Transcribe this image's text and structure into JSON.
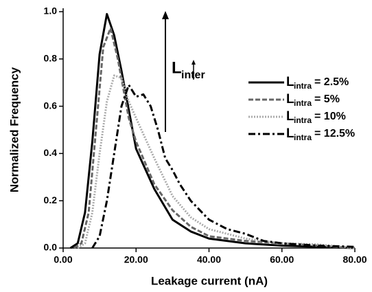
{
  "chart_data": {
    "type": "line",
    "xlabel": "Leakage current (nA)",
    "ylabel": "Normalized Frequency",
    "annotation": [
      "L",
      "inter"
    ],
    "xlim": [
      0,
      80
    ],
    "ylim": [
      0,
      1.0
    ],
    "xticks": [
      {
        "value": 0,
        "label": "0.00"
      },
      {
        "value": 20,
        "label": "20.00"
      },
      {
        "value": 40,
        "label": "40.00"
      },
      {
        "value": 60,
        "label": "60.00"
      },
      {
        "value": 80,
        "label": "80.00"
      }
    ],
    "yticks": [
      {
        "value": 0,
        "label": "0.0"
      },
      {
        "value": 0.2,
        "label": "0.2"
      },
      {
        "value": 0.4,
        "label": "0.4"
      },
      {
        "value": 0.6,
        "label": "0.6"
      },
      {
        "value": 0.8,
        "label": "0.8"
      },
      {
        "value": 1.0,
        "label": "1.0"
      }
    ],
    "series": [
      {
        "name": [
          "L",
          "intra",
          "= 2.5%"
        ],
        "color": "#000000",
        "dash": "solid",
        "x": [
          2,
          4,
          6,
          8,
          10,
          12,
          14,
          16,
          20,
          25,
          30,
          35,
          40,
          50,
          60,
          70,
          80
        ],
        "values": [
          0,
          0.02,
          0.15,
          0.45,
          0.82,
          0.99,
          0.9,
          0.75,
          0.42,
          0.25,
          0.12,
          0.07,
          0.04,
          0.02,
          0.01,
          0.005,
          0
        ]
      },
      {
        "name": [
          "L",
          "intra",
          "= 5%"
        ],
        "color": "#666666",
        "dash": "dashed",
        "x": [
          3,
          5,
          7,
          9,
          11,
          13,
          15,
          18,
          20,
          25,
          30,
          35,
          40,
          50,
          60,
          70,
          80
        ],
        "values": [
          0,
          0.02,
          0.15,
          0.5,
          0.85,
          0.93,
          0.8,
          0.55,
          0.45,
          0.27,
          0.16,
          0.09,
          0.05,
          0.03,
          0.02,
          0.01,
          0
        ]
      },
      {
        "name": [
          "L",
          "intra",
          "= 10%"
        ],
        "color": "#aaaaaa",
        "dash": "dotted",
        "x": [
          4,
          6,
          8,
          10,
          12,
          14,
          16,
          18,
          20,
          25,
          30,
          35,
          40,
          50,
          60,
          70,
          80
        ],
        "values": [
          0,
          0.02,
          0.15,
          0.4,
          0.62,
          0.73,
          0.72,
          0.62,
          0.55,
          0.38,
          0.22,
          0.13,
          0.08,
          0.04,
          0.02,
          0.015,
          0
        ]
      },
      {
        "name": [
          "L",
          "intra",
          "= 12.5%"
        ],
        "color": "#000000",
        "dash": "dashdot",
        "x": [
          8,
          10,
          12,
          14,
          16,
          18,
          20,
          22,
          24,
          26,
          28,
          30,
          32,
          35,
          40,
          45,
          50,
          55,
          60,
          70,
          80
        ],
        "values": [
          0,
          0.05,
          0.2,
          0.4,
          0.6,
          0.69,
          0.64,
          0.65,
          0.6,
          0.5,
          0.38,
          0.33,
          0.27,
          0.2,
          0.12,
          0.08,
          0.06,
          0.03,
          0.02,
          0.01,
          0.005
        ]
      }
    ]
  }
}
